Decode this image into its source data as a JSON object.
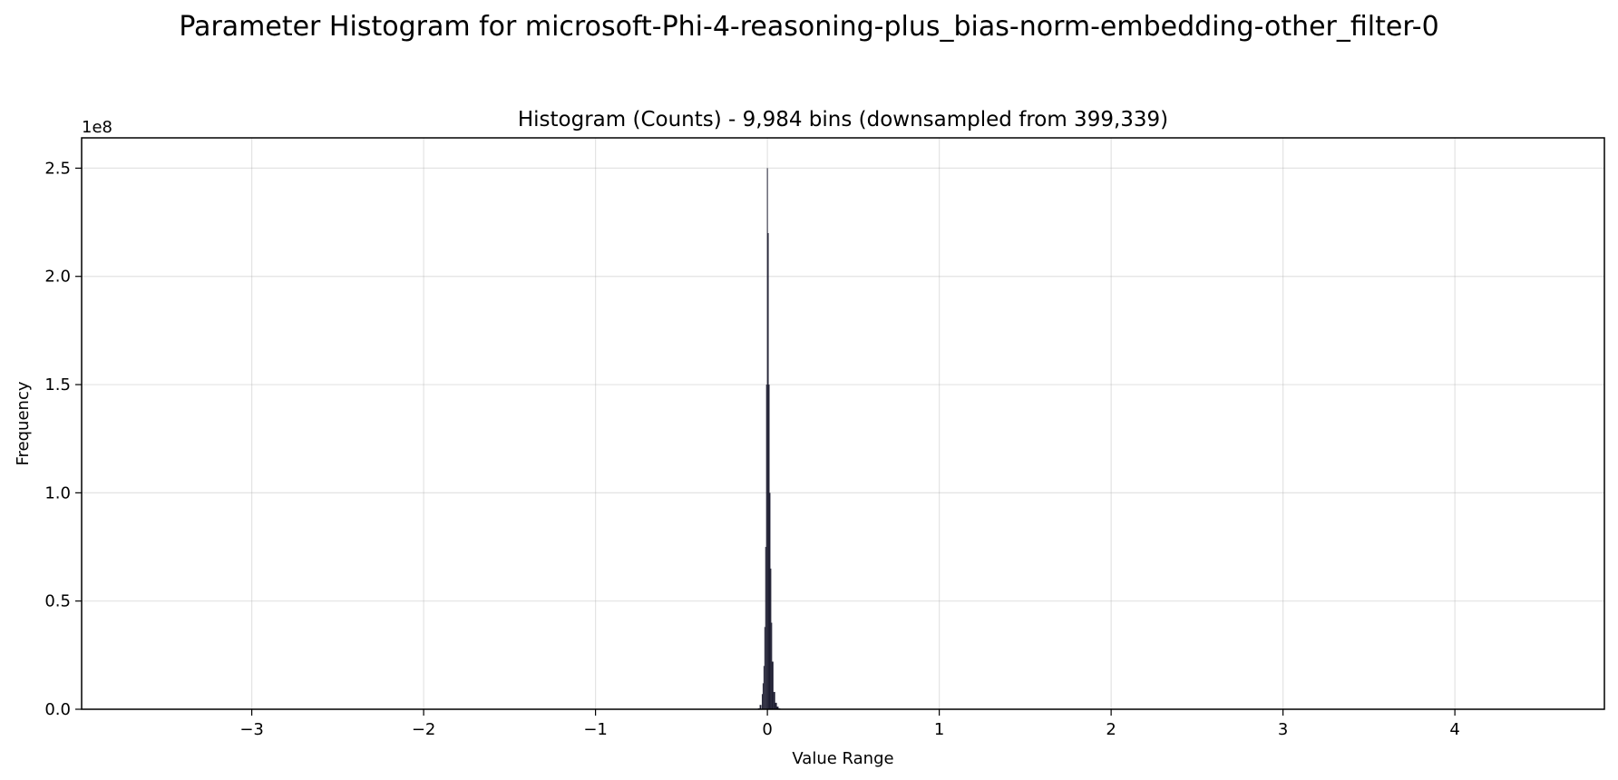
{
  "figure": {
    "suptitle": "Parameter Histogram for microsoft-Phi-4-reasoning-plus_bias-norm-embedding-other_filter-0"
  },
  "chart_data": {
    "type": "bar",
    "title": "Histogram (Counts) - 9,984 bins (downsampled from 399,339)",
    "xlabel": "Value Range",
    "ylabel": "Frequency",
    "y_offset_label": "1e8",
    "xlim": [
      -3.99,
      4.87
    ],
    "ylim": [
      0,
      2.64
    ],
    "xticks": [
      -3,
      -2,
      -1,
      0,
      1,
      2,
      3,
      4
    ],
    "xtick_labels": [
      "−3",
      "−2",
      "−1",
      "0",
      "1",
      "2",
      "3",
      "4"
    ],
    "yticks": [
      0,
      0.5,
      1.0,
      1.5,
      2.0,
      2.5
    ],
    "ytick_labels": [
      "0.0",
      "0.5",
      "1.0",
      "1.5",
      "2.0",
      "2.5"
    ],
    "grid": true,
    "bar_color": "#1a1a2e",
    "histogram": {
      "x": [
        -0.06,
        -0.05,
        -0.04,
        -0.03,
        -0.025,
        -0.02,
        -0.015,
        -0.01,
        -0.005,
        0.0,
        0.005,
        0.01,
        0.015,
        0.02,
        0.025,
        0.03,
        0.04,
        0.05,
        0.06,
        0.07,
        0.08
      ],
      "values": [
        0.001,
        0.004,
        0.02,
        0.07,
        0.12,
        0.2,
        0.38,
        0.75,
        1.5,
        2.5,
        2.2,
        1.5,
        1.0,
        0.65,
        0.4,
        0.22,
        0.08,
        0.03,
        0.012,
        0.004,
        0.001
      ]
    }
  }
}
